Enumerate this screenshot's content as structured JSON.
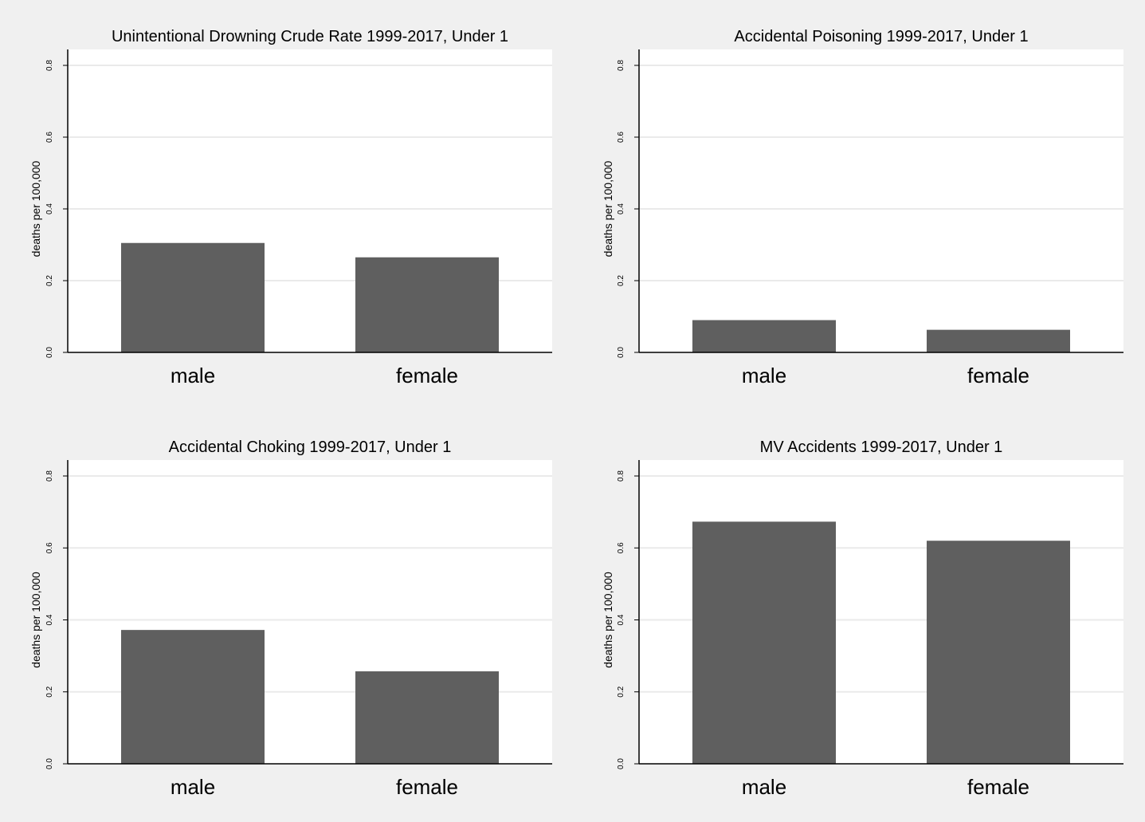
{
  "chart_data": [
    {
      "type": "bar",
      "title": "Unintentional Drowning Crude Rate 1999-2017, Under 1",
      "ylabel": "deaths per 100,000",
      "xlabel": "",
      "categories": [
        "male",
        "female"
      ],
      "values": [
        0.305,
        0.265
      ],
      "ylim": [
        0,
        0.8
      ],
      "yticks": [
        0.0,
        0.2,
        0.4,
        0.6,
        0.8
      ],
      "ytick_labels": [
        "0.0",
        "0.2",
        "0.4",
        "0.6",
        "0.8"
      ],
      "grid": true
    },
    {
      "type": "bar",
      "title": "Accidental Poisoning 1999-2017, Under 1",
      "ylabel": "deaths per 100,000",
      "xlabel": "",
      "categories": [
        "male",
        "female"
      ],
      "values": [
        0.09,
        0.063
      ],
      "ylim": [
        0,
        0.8
      ],
      "yticks": [
        0.0,
        0.2,
        0.4,
        0.6,
        0.8
      ],
      "ytick_labels": [
        "0.0",
        "0.2",
        "0.4",
        "0.6",
        "0.8"
      ],
      "grid": true
    },
    {
      "type": "bar",
      "title": "Accidental Choking 1999-2017, Under 1",
      "ylabel": "deaths per 100,000",
      "xlabel": "",
      "categories": [
        "male",
        "female"
      ],
      "values": [
        0.372,
        0.257
      ],
      "ylim": [
        0,
        0.8
      ],
      "yticks": [
        0.0,
        0.2,
        0.4,
        0.6,
        0.8
      ],
      "ytick_labels": [
        "0.0",
        "0.2",
        "0.4",
        "0.6",
        "0.8"
      ],
      "grid": true
    },
    {
      "type": "bar",
      "title": "MV Accidents 1999-2017, Under 1",
      "ylabel": "deaths per 100,000",
      "xlabel": "",
      "categories": [
        "male",
        "female"
      ],
      "values": [
        0.673,
        0.62
      ],
      "ylim": [
        0,
        0.8
      ],
      "yticks": [
        0.0,
        0.2,
        0.4,
        0.6,
        0.8
      ],
      "ytick_labels": [
        "0.0",
        "0.2",
        "0.4",
        "0.6",
        "0.8"
      ],
      "grid": true
    }
  ],
  "colors": {
    "bar": "#5f5f5f",
    "plot_background": "#ffffff",
    "figure_background": "#f0f0f0",
    "grid": "#eaeaea",
    "axis": "#000000"
  }
}
